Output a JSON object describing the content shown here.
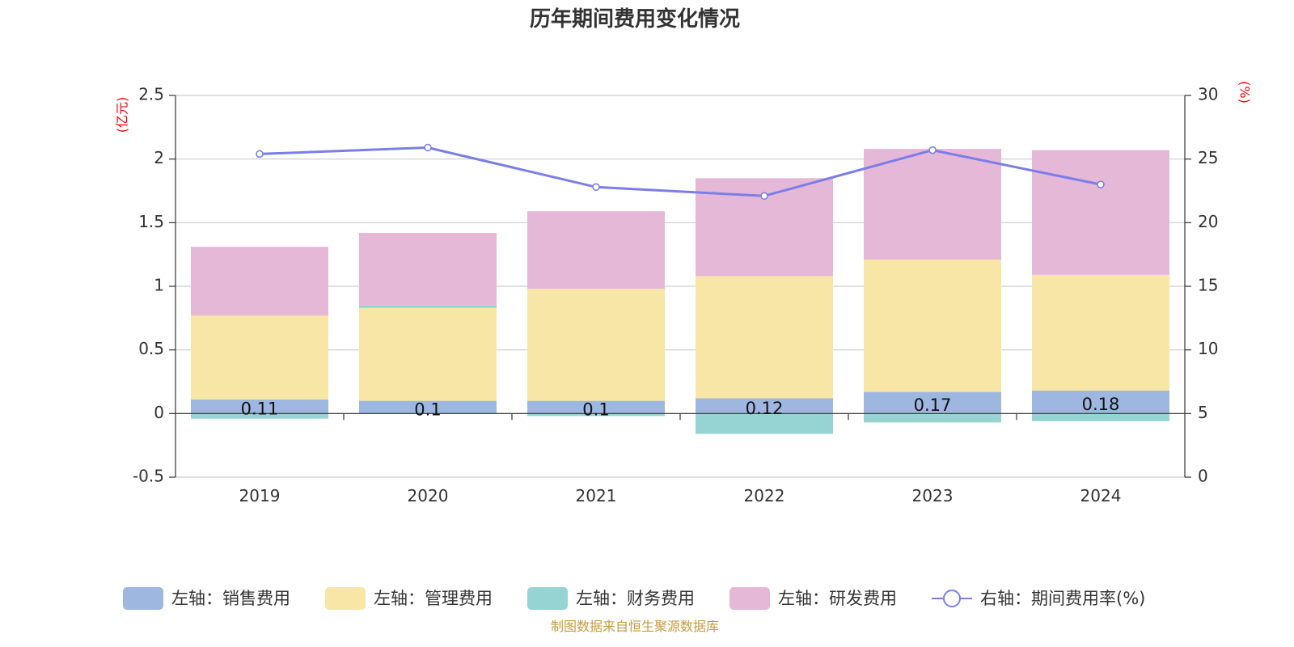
{
  "title": "历年期间费用变化情况",
  "left_unit": "(亿元)",
  "right_unit": "(%)",
  "source": "制图数据来自恒生聚源数据库",
  "colors": {
    "sales": "#9db7e1",
    "admin": "#f8e6a6",
    "finance": "#96d4d4",
    "rd": "#e6b8d8",
    "rate": "#7b7ee8"
  },
  "chart_data": {
    "type": "bar",
    "stacked": true,
    "categories": [
      "2019",
      "2020",
      "2021",
      "2022",
      "2023",
      "2024"
    ],
    "left_axis": {
      "ylim": [
        -0.5,
        2.5
      ],
      "ticks": [
        "-0.5",
        "0",
        "0.5",
        "1",
        "1.5",
        "2",
        "2.5"
      ]
    },
    "right_axis": {
      "ylim": [
        0,
        30
      ],
      "ticks": [
        "0",
        "5",
        "10",
        "15",
        "20",
        "25",
        "30"
      ]
    },
    "grid": true,
    "legend_position": "bottom",
    "series": [
      {
        "key": "sales",
        "name": "左轴：销售费用",
        "axis": "left",
        "type": "bar",
        "values": [
          0.11,
          0.1,
          0.1,
          0.12,
          0.17,
          0.18
        ],
        "labels": [
          "0.11",
          "0.1",
          "0.1",
          "0.12",
          "0.17",
          "0.18"
        ]
      },
      {
        "key": "admin",
        "name": "左轴：管理费用",
        "axis": "left",
        "type": "bar",
        "values": [
          0.66,
          0.73,
          0.88,
          0.96,
          1.04,
          0.91
        ]
      },
      {
        "key": "finance",
        "name": "左轴：财务费用",
        "axis": "left",
        "type": "bar",
        "values": [
          -0.04,
          0.02,
          -0.02,
          -0.16,
          -0.07,
          -0.06
        ]
      },
      {
        "key": "rd",
        "name": "左轴：研发费用",
        "axis": "left",
        "type": "bar",
        "values": [
          0.54,
          0.57,
          0.61,
          0.77,
          0.87,
          0.98
        ]
      },
      {
        "key": "rate",
        "name": "右轴：期间费用率(%)",
        "axis": "right",
        "type": "line",
        "values": [
          25.4,
          25.9,
          22.8,
          22.1,
          25.7,
          23.0
        ]
      }
    ]
  }
}
